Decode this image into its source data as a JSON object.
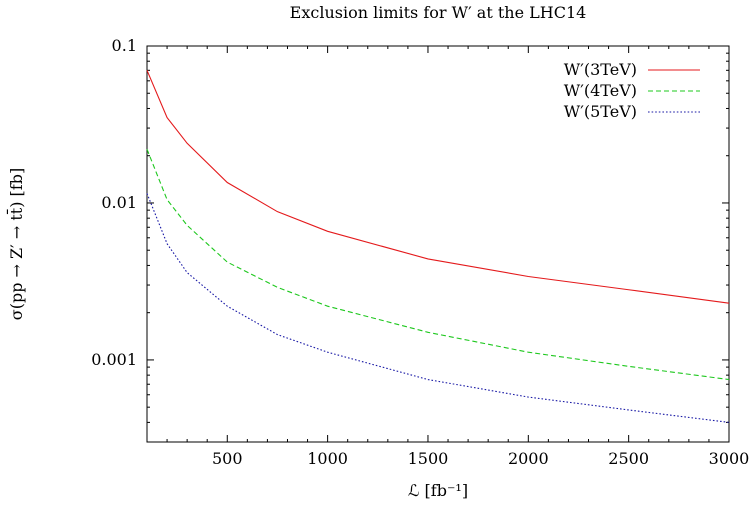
{
  "chart_data": {
    "type": "line",
    "title": "Exclusion limits for W′ at the LHC14",
    "xlabel": "ℒ [fb⁻¹]",
    "ylabel": "σ(pp → Z′ → tt̄) [fb]",
    "xlim": [
      100,
      3000
    ],
    "ylim": [
      0.0003,
      0.1
    ],
    "yscale": "log",
    "xticks": [
      500,
      1000,
      1500,
      2000,
      2500,
      3000
    ],
    "xtick_labels": [
      "500",
      "1000",
      "1500",
      "2000",
      "2500",
      "3000"
    ],
    "yticks": [
      0.001,
      0.01,
      0.1
    ],
    "ytick_labels": [
      "0.001",
      "0.01",
      "0.1"
    ],
    "grid": false,
    "legend_position": "top-right",
    "series": [
      {
        "name": "W′(3TeV)",
        "color": "#e41a1c",
        "dash": "solid",
        "x": [
          100,
          200,
          300,
          500,
          750,
          1000,
          1500,
          2000,
          2500,
          3000
        ],
        "y": [
          0.07,
          0.035,
          0.024,
          0.0135,
          0.0088,
          0.0066,
          0.0044,
          0.0034,
          0.0028,
          0.0023
        ]
      },
      {
        "name": "W′(4TeV)",
        "color": "#1ec81e",
        "dash": "dashed",
        "x": [
          100,
          200,
          300,
          500,
          750,
          1000,
          1500,
          2000,
          2500,
          3000
        ],
        "y": [
          0.022,
          0.0105,
          0.0072,
          0.0042,
          0.0029,
          0.0022,
          0.0015,
          0.00112,
          0.00091,
          0.00075
        ]
      },
      {
        "name": "W′(5TeV)",
        "color": "#1a1aa6",
        "dash": "dotted",
        "x": [
          100,
          200,
          300,
          500,
          750,
          1000,
          1500,
          2000,
          2500,
          3000
        ],
        "y": [
          0.0115,
          0.0055,
          0.0036,
          0.0022,
          0.00145,
          0.00112,
          0.00075,
          0.00058,
          0.00048,
          0.0004
        ]
      }
    ]
  }
}
